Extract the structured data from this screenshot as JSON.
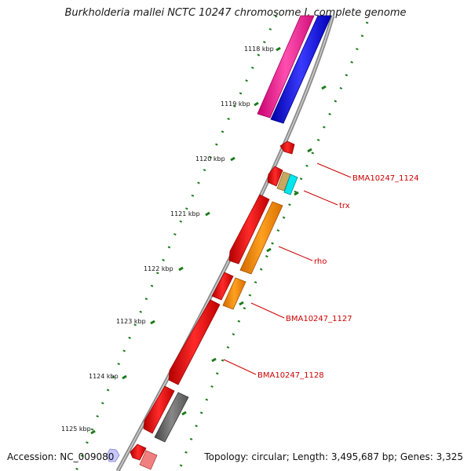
{
  "title": "Burkholderia mallei NCTC 10247 chromosome I, complete genome",
  "accession": "Accession: NC_009080",
  "topology": "Topology: circular; Length: 3,495,687 bp; Genes: 3,325",
  "ticks": [
    {
      "label": "1118 kbp"
    },
    {
      "label": "1119 kbp"
    },
    {
      "label": "1120 kbp"
    },
    {
      "label": "1121 kbp"
    },
    {
      "label": "1122 kbp"
    },
    {
      "label": "1123 kbp"
    },
    {
      "label": "1124 kbp"
    },
    {
      "label": "1125 kbp"
    }
  ],
  "gene_labels": [
    {
      "name": "BMA10247_1124"
    },
    {
      "name": "trx"
    },
    {
      "name": "rho"
    },
    {
      "name": "BMA10247_1127"
    },
    {
      "name": "BMA10247_1128"
    }
  ],
  "colors": {
    "backbone": "#888888",
    "tick": "#1a7a1a",
    "gene_red": "#ee1111",
    "gene_orange": "#ff8c00",
    "gene_magenta": "#ff1493",
    "gene_blue": "#1010ee",
    "gene_cyan": "#00e5ee",
    "gene_tan": "#c8a860",
    "gene_gray": "#666666",
    "gene_pink": "#f08080",
    "label": "#cc0000"
  }
}
